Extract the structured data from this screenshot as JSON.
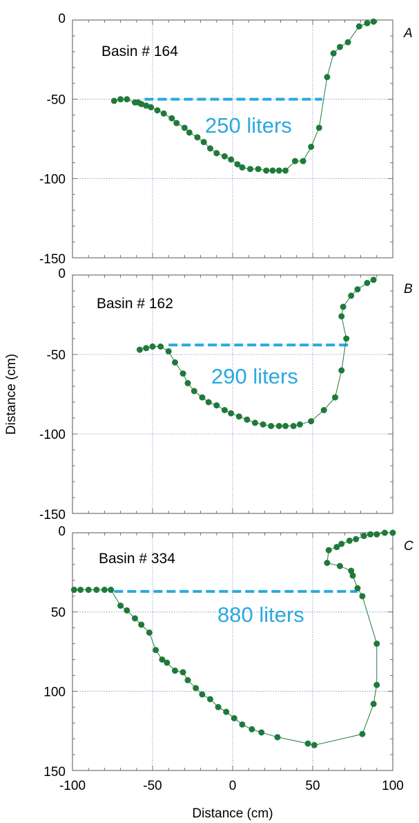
{
  "colors": {
    "profile": "#1f7a3a",
    "waterline": "#29a8df",
    "grid": "#7a84c8",
    "frame": "#555555"
  },
  "chart_data": [
    {
      "type": "scatter",
      "panel": "A",
      "title": "Basin # 164",
      "volume_label": "250 liters",
      "xlim": [
        -100,
        100
      ],
      "ylim": [
        -150,
        0
      ],
      "yticks": [
        "0",
        "-50",
        "-100",
        "-150"
      ],
      "waterline": {
        "x": [
          -55,
          56
        ],
        "y": -50
      },
      "points": [
        [
          -74,
          -51
        ],
        [
          -70,
          -50
        ],
        [
          -66,
          -50
        ],
        [
          -61,
          -52
        ],
        [
          -59,
          -52
        ],
        [
          -57,
          -53
        ],
        [
          -54,
          -54
        ],
        [
          -51,
          -55
        ],
        [
          -47,
          -57
        ],
        [
          -43,
          -59
        ],
        [
          -38,
          -62
        ],
        [
          -35,
          -65
        ],
        [
          -30,
          -68
        ],
        [
          -27,
          -71
        ],
        [
          -22,
          -74
        ],
        [
          -18,
          -77
        ],
        [
          -14,
          -81
        ],
        [
          -10,
          -84
        ],
        [
          -5,
          -86
        ],
        [
          -1,
          -88
        ],
        [
          3,
          -91
        ],
        [
          6,
          -93
        ],
        [
          11,
          -94
        ],
        [
          16,
          -94
        ],
        [
          21,
          -95
        ],
        [
          25,
          -95
        ],
        [
          29,
          -95
        ],
        [
          33,
          -95
        ],
        [
          39,
          -89
        ],
        [
          44,
          -89
        ],
        [
          49,
          -80
        ],
        [
          54,
          -68
        ],
        [
          59,
          -36
        ],
        [
          63,
          -21
        ],
        [
          67,
          -17
        ],
        [
          72,
          -14
        ],
        [
          79,
          -4
        ],
        [
          84,
          -2
        ],
        [
          88,
          -1
        ]
      ]
    },
    {
      "type": "scatter",
      "panel": "B",
      "title": "Basin # 162",
      "volume_label": "290 liters",
      "ylabel": "Distance (cm)",
      "xlim": [
        -100,
        100
      ],
      "ylim": [
        -150,
        0
      ],
      "yticks": [
        "0",
        "-50",
        "-100",
        "-150"
      ],
      "waterline": {
        "x": [
          -40,
          73
        ],
        "y": -44
      },
      "points": [
        [
          -58,
          -47
        ],
        [
          -54,
          -46
        ],
        [
          -50,
          -45
        ],
        [
          -45,
          -45
        ],
        [
          -40,
          -48
        ],
        [
          -36,
          -55
        ],
        [
          -31,
          -62
        ],
        [
          -28,
          -68
        ],
        [
          -24,
          -73
        ],
        [
          -19,
          -77
        ],
        [
          -15,
          -80
        ],
        [
          -10,
          -82
        ],
        [
          -5,
          -85
        ],
        [
          -1,
          -87
        ],
        [
          4,
          -89
        ],
        [
          9,
          -91
        ],
        [
          14,
          -93
        ],
        [
          19,
          -94
        ],
        [
          24,
          -95
        ],
        [
          29,
          -95
        ],
        [
          33,
          -95
        ],
        [
          38,
          -95
        ],
        [
          42,
          -94
        ],
        [
          49,
          -92
        ],
        [
          57,
          -85
        ],
        [
          64,
          -77
        ],
        [
          68,
          -60
        ],
        [
          71,
          -40
        ],
        [
          68,
          -26
        ],
        [
          69,
          -20
        ],
        [
          74,
          -13
        ],
        [
          78,
          -9
        ],
        [
          84,
          -5
        ],
        [
          88,
          -3
        ]
      ]
    },
    {
      "type": "scatter",
      "panel": "C",
      "title": "Basin # 334",
      "volume_label": "880 liters",
      "xlabel": "Distance (cm)",
      "xlim": [
        -100,
        100
      ],
      "ylim": [
        150,
        0
      ],
      "xticks": [
        "-100",
        "-50",
        "0",
        "50",
        "100"
      ],
      "yticks": [
        "0",
        "50",
        "100",
        "150"
      ],
      "waterline": {
        "x": [
          -74,
          78
        ],
        "y": 37
      },
      "points": [
        [
          -99,
          36
        ],
        [
          -95,
          36
        ],
        [
          -90,
          36
        ],
        [
          -85,
          36
        ],
        [
          -80,
          36
        ],
        [
          -76,
          36
        ],
        [
          -70,
          46
        ],
        [
          -66,
          49
        ],
        [
          -61,
          54
        ],
        [
          -57,
          58
        ],
        [
          -52,
          63
        ],
        [
          -48,
          74
        ],
        [
          -44,
          80
        ],
        [
          -41,
          82
        ],
        [
          -36,
          87
        ],
        [
          -31,
          88
        ],
        [
          -28,
          93
        ],
        [
          -23,
          98
        ],
        [
          -19,
          102
        ],
        [
          -14,
          105
        ],
        [
          -9,
          110
        ],
        [
          -4,
          113
        ],
        [
          1,
          117
        ],
        [
          6,
          121
        ],
        [
          12,
          124
        ],
        [
          18,
          126
        ],
        [
          28,
          129
        ],
        [
          47,
          133
        ],
        [
          51,
          134
        ],
        [
          81,
          127
        ],
        [
          88,
          108
        ],
        [
          90,
          96
        ],
        [
          90,
          70
        ],
        [
          81,
          40
        ],
        [
          78,
          35
        ],
        [
          75,
          27
        ],
        [
          74,
          24
        ],
        [
          67,
          21
        ],
        [
          59,
          19
        ],
        [
          60,
          11
        ],
        [
          65,
          9
        ],
        [
          68,
          7
        ],
        [
          73,
          5
        ],
        [
          77,
          4
        ],
        [
          82,
          2
        ],
        [
          86,
          1
        ],
        [
          90,
          1
        ],
        [
          95,
          0
        ],
        [
          100,
          0
        ]
      ]
    }
  ]
}
